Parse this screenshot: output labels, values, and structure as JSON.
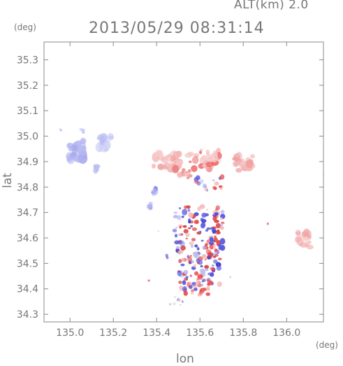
{
  "header": {
    "alt_label": "ALT(km) 2.0",
    "datetime": "2013/05/29 08:31:14"
  },
  "axes": {
    "y_unit": "(deg)",
    "x_unit": "(deg)",
    "xlabel": "lon",
    "ylabel": "lat",
    "xlim": [
      134.88,
      136.17
    ],
    "ylim": [
      34.27,
      35.37
    ],
    "x_ticks": [
      "135.0",
      "135.2",
      "135.4",
      "135.6",
      "135.8",
      "136.0"
    ],
    "y_ticks": [
      "34.3",
      "34.4",
      "34.5",
      "34.6",
      "34.7",
      "34.8",
      "34.9",
      "35.0",
      "35.1",
      "35.2",
      "35.3"
    ]
  },
  "colors": {
    "frame": "#888888",
    "positive": "#e94c4c",
    "negative": "#5a5ce0",
    "weak_positive": "#f4b8b8",
    "weak_negative": "#b9bbf2"
  }
}
